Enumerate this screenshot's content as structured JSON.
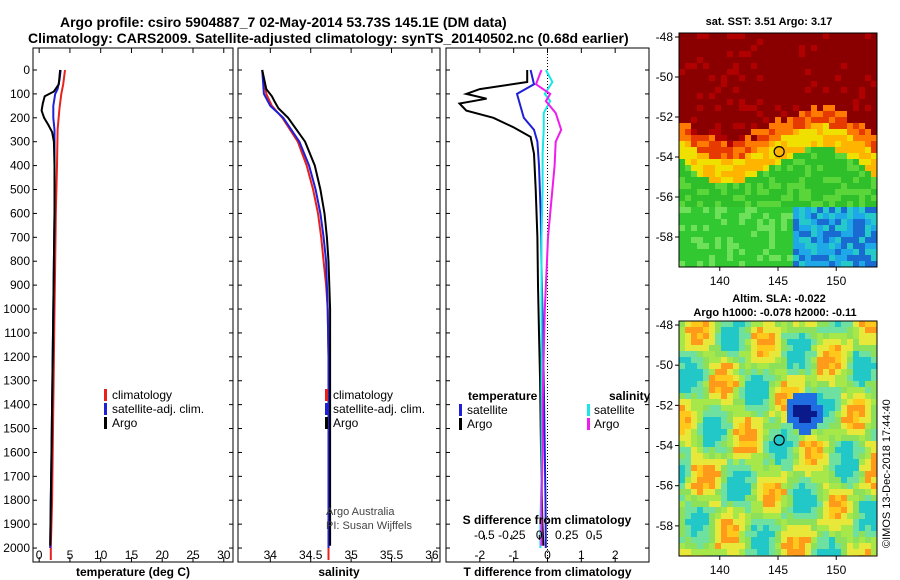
{
  "header": {
    "title_line1": "Argo profile: csiro 5904887_7 02-May-2014 53.73S 145.1E (DM data)",
    "title_line2": "Climatology: CARS2009. Satellite-adjusted climatology: synTS_20140502.nc (0.68d earlier)"
  },
  "colors": {
    "climatology": "#e8211d",
    "satellite": "#1f1fd6",
    "argo": "#000000",
    "sal_satellite": "#19e6e6",
    "sal_argo": "#ef1ced"
  },
  "chart_data": [
    {
      "type": "line",
      "id": "temperature",
      "xlabel": "temperature (deg C)",
      "ylabel": "",
      "xlim": [
        -1,
        31.5
      ],
      "ylim": [
        2050,
        0
      ],
      "xticks": [
        0,
        5,
        10,
        15,
        20,
        25,
        30
      ],
      "yticks": [
        0,
        100,
        200,
        300,
        400,
        500,
        600,
        700,
        800,
        900,
        1000,
        1100,
        1200,
        1300,
        1400,
        1500,
        1600,
        1700,
        1800,
        1900,
        2000
      ],
      "legend": [
        "climatology",
        "satellite-adj. clim.",
        "Argo"
      ],
      "series": [
        {
          "name": "climatology",
          "depth": [
            0,
            60,
            100,
            160,
            250,
            400,
            600,
            800,
            1000,
            1200,
            1400,
            1600,
            1800,
            2000,
            2050
          ],
          "values": [
            4.2,
            3.9,
            3.6,
            3.3,
            3.0,
            2.9,
            2.7,
            2.6,
            2.5,
            2.4,
            2.3,
            2.2,
            2.1,
            1.9,
            1.9
          ]
        },
        {
          "name": "satellite-adj. clim.",
          "depth": [
            0,
            40,
            80,
            100,
            150,
            200,
            250,
            400,
            600,
            800,
            1000,
            1200,
            1400,
            1600,
            1800,
            2000
          ],
          "values": [
            3.5,
            3.3,
            3.0,
            2.6,
            2.3,
            2.3,
            2.5,
            2.5,
            2.5,
            2.4,
            2.3,
            2.2,
            2.1,
            2.0,
            1.9,
            1.8
          ]
        },
        {
          "name": "Argo",
          "depth": [
            0,
            60,
            90,
            110,
            140,
            170,
            200,
            230,
            260,
            300,
            400,
            600,
            800,
            1000,
            1200,
            1400,
            1600,
            1800,
            1990
          ],
          "values": [
            3.4,
            3.2,
            2.4,
            0.9,
            0.6,
            0.4,
            0.8,
            1.5,
            2.1,
            2.4,
            2.5,
            2.5,
            2.4,
            2.3,
            2.2,
            2.1,
            2.0,
            1.9,
            1.8
          ]
        }
      ]
    },
    {
      "type": "line",
      "id": "salinity",
      "xlabel": "salinity",
      "ylabel": "",
      "xlim": [
        33.6,
        36.1
      ],
      "ylim": [
        2050,
        0
      ],
      "xticks": [
        34,
        34.5,
        35,
        35.5,
        36
      ],
      "legend": [
        "climatology",
        "satellite-adj. clim.",
        "Argo"
      ],
      "credit": [
        "Argo Australia",
        "PI: Susan Wijffels"
      ],
      "series": [
        {
          "name": "climatology",
          "depth": [
            0,
            100,
            150,
            200,
            300,
            400,
            500,
            600,
            700,
            800,
            900,
            1000,
            1200,
            1400,
            1600,
            1800,
            2050
          ],
          "values": [
            33.9,
            33.95,
            34.02,
            34.15,
            34.34,
            34.45,
            34.53,
            34.59,
            34.63,
            34.66,
            34.69,
            34.71,
            34.72,
            34.72,
            34.72,
            34.72,
            34.72
          ]
        },
        {
          "name": "satellite-adj. clim.",
          "depth": [
            0,
            100,
            150,
            200,
            300,
            400,
            500,
            600,
            700,
            800,
            900,
            1000,
            1200,
            1400,
            1600,
            1800,
            2000
          ],
          "values": [
            33.9,
            33.92,
            34.0,
            34.16,
            34.36,
            34.48,
            34.56,
            34.62,
            34.66,
            34.69,
            34.7,
            34.71,
            34.72,
            34.72,
            34.72,
            34.72,
            34.72
          ]
        },
        {
          "name": "Argo",
          "depth": [
            0,
            80,
            110,
            130,
            160,
            200,
            300,
            400,
            500,
            600,
            700,
            800,
            900,
            1000,
            1200,
            1400,
            1600,
            1800,
            1990
          ],
          "values": [
            33.9,
            33.95,
            34.02,
            34.05,
            34.1,
            34.22,
            34.43,
            34.55,
            34.62,
            34.67,
            34.7,
            34.72,
            34.73,
            34.74,
            34.74,
            34.74,
            34.74,
            34.74,
            34.74
          ]
        }
      ]
    },
    {
      "type": "line",
      "id": "difference",
      "xlabel": "T difference from climatology",
      "xlabel2": "S difference from climatology",
      "xlim": [
        -3,
        3
      ],
      "ylim": [
        2050,
        0
      ],
      "xticks": [
        -2,
        -1,
        0,
        1,
        2
      ],
      "xticks_labels": [
        "-2",
        "-1",
        "0",
        "1",
        "2"
      ],
      "sticks_values": [
        -0.5,
        -0.25,
        0,
        0.25,
        0.5
      ],
      "sticks_labels": [
        "-0.5",
        "-0.25",
        "0",
        "0.25",
        "0.5"
      ],
      "legend_temperature": {
        "title": "temperature",
        "items": [
          "satellite",
          "Argo"
        ]
      },
      "legend_salinity": {
        "title": "salinity",
        "items": [
          "satellite",
          "Argo"
        ]
      },
      "series": [
        {
          "name": "temperature satellite",
          "depth": [
            0,
            60,
            100,
            150,
            200,
            250,
            300,
            400,
            600,
            800,
            1000,
            1200,
            1400,
            1600,
            1800,
            2000
          ],
          "values": [
            -0.5,
            -0.4,
            -0.9,
            -0.8,
            -0.7,
            -0.4,
            -0.3,
            -0.25,
            -0.2,
            -0.18,
            -0.15,
            -0.12,
            -0.1,
            -0.08,
            -0.06,
            -0.05
          ]
        },
        {
          "name": "temperature Argo",
          "depth": [
            0,
            50,
            80,
            100,
            120,
            140,
            170,
            200,
            240,
            280,
            350,
            500,
            700,
            900,
            1100,
            1300,
            1500,
            1700,
            1900,
            1990
          ],
          "values": [
            -0.6,
            -0.6,
            -2.0,
            -2.4,
            -1.8,
            -2.6,
            -2.4,
            -1.6,
            -1.0,
            -0.5,
            -0.4,
            -0.35,
            -0.3,
            -0.28,
            -0.25,
            -0.22,
            -0.2,
            -0.18,
            -0.15,
            -0.12
          ]
        },
        {
          "name": "salinity satellite",
          "depth": [
            0,
            50,
            100,
            130,
            180,
            250,
            350,
            500,
            700,
            900,
            1100,
            1300,
            1500,
            1700,
            1900,
            2000
          ],
          "values": [
            0.06,
            0.12,
            0.05,
            0.1,
            0.04,
            0.04,
            0.03,
            0.03,
            0.02,
            0.02,
            0.02,
            0.02,
            0.02,
            0.02,
            0.01,
            0.01
          ]
        },
        {
          "name": "salinity Argo",
          "depth": [
            0,
            60,
            100,
            130,
            180,
            250,
            300,
            400,
            500,
            600,
            700,
            800,
            900,
            1000,
            1200,
            1400,
            1600,
            1800,
            1990
          ],
          "values": [
            0.02,
            -0.03,
            0.1,
            0.06,
            0.15,
            0.2,
            0.15,
            0.14,
            0.12,
            0.1,
            0.08,
            0.07,
            0.06,
            0.05,
            0.04,
            0.03,
            0.03,
            0.02,
            0.02
          ]
        }
      ]
    },
    {
      "type": "heatmap",
      "id": "sst_map",
      "title": "sat. SST: 3.51 Argo: 3.17",
      "xticks": [
        140,
        145,
        150
      ],
      "yticks": [
        -48,
        -50,
        -52,
        -54,
        -56,
        -58
      ],
      "xlim": [
        136.5,
        153.5
      ],
      "ylim": [
        -59.5,
        -47.8
      ],
      "marker": {
        "lon": 145.1,
        "lat": -53.73
      }
    },
    {
      "type": "heatmap",
      "id": "sla_map",
      "title": "Altim. SLA: -0.022",
      "subtitle": "Argo h1000: -0.078 h2000: -0.11",
      "xticks": [
        140,
        145,
        150
      ],
      "yticks": [
        -48,
        -50,
        -52,
        -54,
        -56,
        -58
      ],
      "xlim": [
        136.5,
        153.5
      ],
      "ylim": [
        -59.5,
        -47.8
      ],
      "marker": {
        "lon": 145.1,
        "lat": -53.73
      },
      "credit": "©IMOS 13-Dec-2018 17:44:40"
    }
  ]
}
